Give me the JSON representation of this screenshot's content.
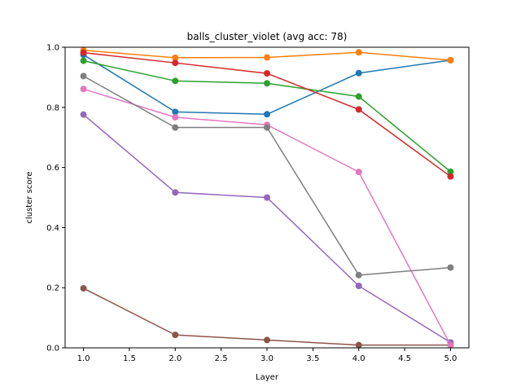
{
  "chart_data": {
    "type": "line",
    "title": "balls_cluster_violet (avg acc: 78)",
    "xlabel": "Layer",
    "ylabel": "cluster score",
    "xlim": [
      0.8,
      5.2
    ],
    "ylim": [
      0.0,
      1.0
    ],
    "xticks": [
      "1.0",
      "1.5",
      "2.0",
      "2.5",
      "3.0",
      "3.5",
      "4.0",
      "4.5",
      "5.0"
    ],
    "yticks": [
      "0.0",
      "0.2",
      "0.4",
      "0.6",
      "0.8",
      "1.0"
    ],
    "grid": false,
    "legend": false,
    "x": [
      1,
      2,
      3,
      4,
      5
    ],
    "series": [
      {
        "color": "#1f77b4",
        "values": [
          0.975,
          0.785,
          0.777,
          0.914,
          0.957
        ]
      },
      {
        "color": "#ff7f0e",
        "values": [
          0.99,
          0.965,
          0.966,
          0.983,
          0.957
        ]
      },
      {
        "color": "#2ca02c",
        "values": [
          0.955,
          0.888,
          0.88,
          0.836,
          0.586
        ]
      },
      {
        "color": "#d62728",
        "values": [
          0.982,
          0.948,
          0.913,
          0.793,
          0.57
        ]
      },
      {
        "color": "#9467bd",
        "values": [
          0.776,
          0.517,
          0.5,
          0.206,
          0.018
        ]
      },
      {
        "color": "#8c564b",
        "values": [
          0.198,
          0.043,
          0.026,
          0.009,
          0.009
        ]
      },
      {
        "color": "#e377c2",
        "values": [
          0.861,
          0.767,
          0.742,
          0.585,
          0.009
        ]
      },
      {
        "color": "#7f7f7f",
        "values": [
          0.904,
          0.733,
          0.733,
          0.242,
          0.267
        ]
      }
    ]
  }
}
